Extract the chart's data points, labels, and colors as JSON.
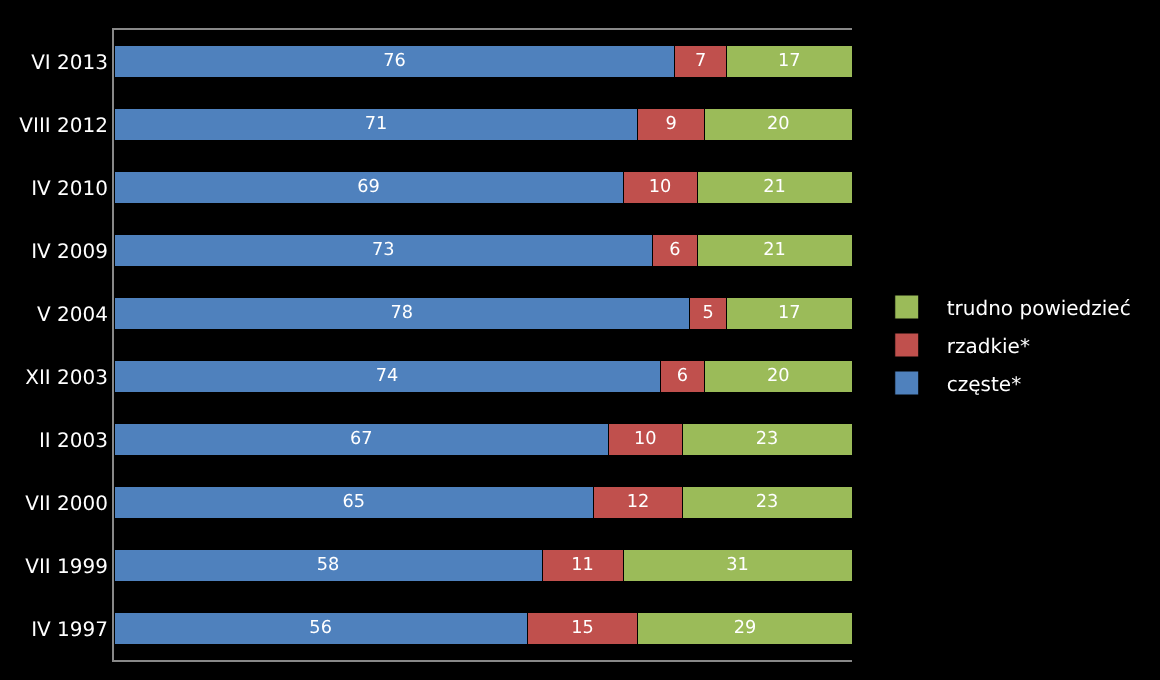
{
  "chart_data": {
    "type": "bar",
    "orientation": "horizontal",
    "stacked": true,
    "data_labels": true,
    "legend": "right",
    "grid": false,
    "categories": [
      "VI 2013",
      "VIII 2012",
      "IV 2010",
      "IV 2009",
      "V 2004",
      "XII 2003",
      "II 2003",
      "VII 2000",
      "VII 1999",
      "IV 1997"
    ],
    "series": [
      {
        "name": "częste*",
        "color": "#4f81bd",
        "values": [
          76,
          71,
          69,
          73,
          78,
          74,
          67,
          65,
          58,
          56
        ]
      },
      {
        "name": "rzadkie*",
        "color": "#c0504d",
        "values": [
          7,
          9,
          10,
          6,
          5,
          6,
          10,
          12,
          11,
          15
        ]
      },
      {
        "name": "trudno powiedzieć",
        "color": "#9bbb59",
        "values": [
          17,
          20,
          21,
          21,
          17,
          20,
          23,
          23,
          31,
          29
        ]
      }
    ]
  }
}
